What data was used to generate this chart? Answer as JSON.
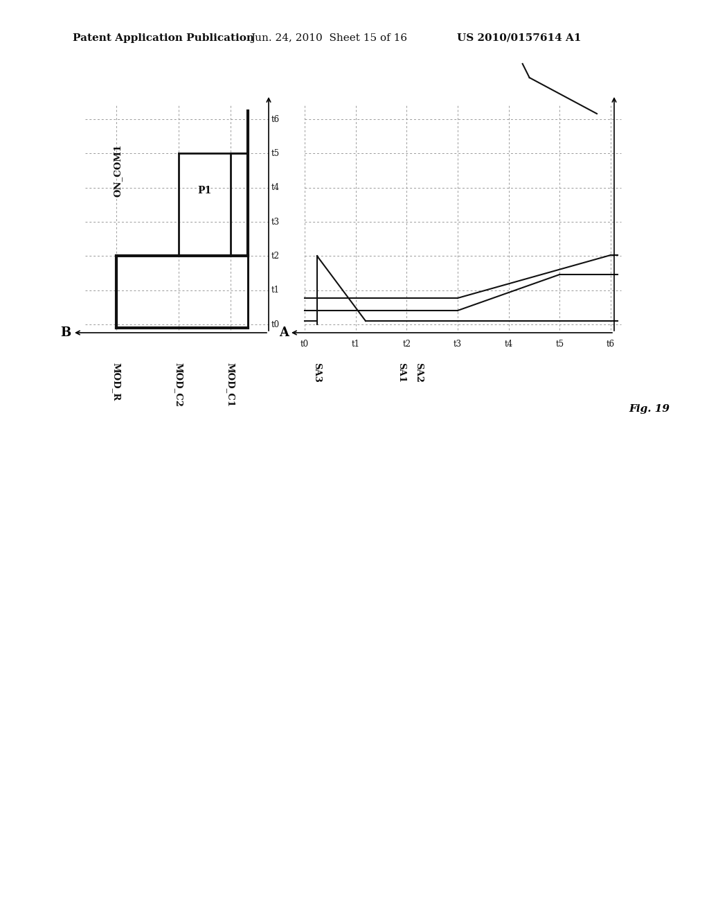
{
  "header_left": "Patent Application Publication",
  "header_center": "Jun. 24, 2010  Sheet 15 of 16",
  "header_right": "US 2010/0157614 A1",
  "figure_label": "Fig. 19",
  "bg_color": "#ffffff",
  "time_labels": [
    "t0",
    "t1",
    "t2",
    "t3",
    "t4",
    "t5",
    "t6"
  ],
  "left_signals": [
    "MOD_R",
    "MOD_C2",
    "MOD_C1"
  ],
  "right_signals": [
    "SA3",
    "SA1",
    "SA2"
  ],
  "left_axis_label": "B",
  "right_axis_label": "A",
  "on_com1_label": "ON_COM1",
  "p1_label": "P1"
}
